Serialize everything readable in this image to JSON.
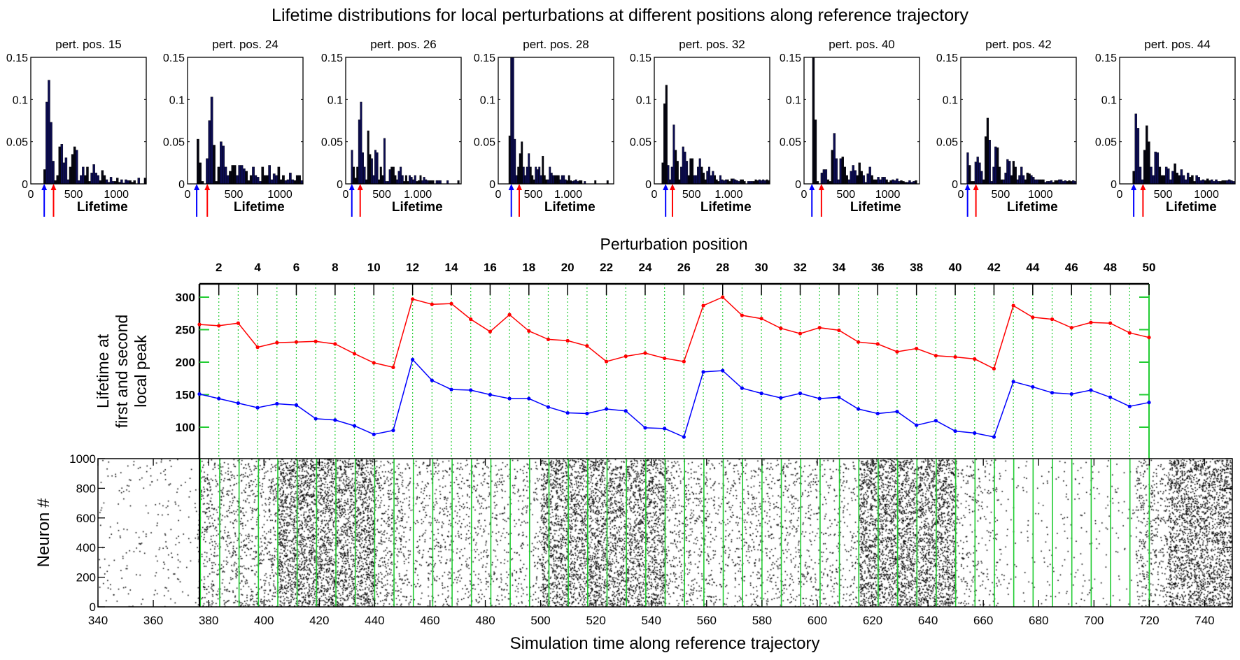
{
  "title": "Lifetime distributions for local perturbations at different positions along reference trajectory",
  "chart_data": [
    {
      "type": "bar",
      "name": "lifetime-histograms",
      "xlabel": "Lifetime",
      "ylim": [
        0,
        0.15
      ],
      "yticks": [
        "0",
        "0.05",
        "0.1",
        "0.15"
      ],
      "bin_width": 25,
      "panels": [
        {
          "title": "pert. pos. 15",
          "xlim": [
            0,
            1350
          ],
          "xticks": [
            {
              "v": 0,
              "l": "0"
            },
            {
              "v": 500,
              "l": "500"
            },
            {
              "v": 1000,
              "l": "1000"
            }
          ],
          "first_peak": 157,
          "second_peak": 266,
          "values": [
            0,
            0,
            0,
            0,
            0,
            0,
            0.017,
            0.097,
            0.123,
            0.073,
            0.027,
            0.004,
            0.01,
            0.044,
            0.047,
            0.025,
            0.031,
            0.005,
            0.02,
            0.035,
            0.044,
            0.04,
            0.004,
            0.01,
            0.02,
            0.01,
            0.02,
            0.003,
            0.013,
            0.023,
            0.013,
            0.01,
            0.004,
            0.016,
            0.01,
            0.005,
            0.002,
            0.008,
            0.003,
            0.003,
            0.007,
            0.002,
            0.005,
            0.001,
            0.005,
            0.004,
            0.004,
            0.002,
            0.004,
            0,
            0.007,
            0,
            0,
            0.007,
            0
          ]
        },
        {
          "title": "pert. pos. 24",
          "xlim": [
            0,
            1250
          ],
          "xticks": [
            {
              "v": 0,
              "l": "0"
            },
            {
              "v": 500,
              "l": "500"
            },
            {
              "v": 1000,
              "l": "1000"
            }
          ],
          "first_peak": 99,
          "second_peak": 214,
          "values": [
            0,
            0,
            0,
            0,
            0.053,
            0.025,
            0.003,
            0,
            0.03,
            0.075,
            0.103,
            0.046,
            0.003,
            0.02,
            0.05,
            0.045,
            0.02,
            0.01,
            0.015,
            0.022,
            0.022,
            0.01,
            0.022,
            0.022,
            0.018,
            0.015,
            0.004,
            0.01,
            0.02,
            0.01,
            0.008,
            0.003,
            0.02,
            0.01,
            0.01,
            0.022,
            0.005,
            0.012,
            0.01,
            0.02,
            0.005,
            0.01,
            0.004,
            0.005,
            0.013,
            0.005,
            0.004,
            0.01,
            0.01,
            0.004
          ]
        },
        {
          "title": "pert. pos. 26",
          "xlim": [
            0,
            1600
          ],
          "xticks": [
            {
              "v": 0,
              "l": "0"
            },
            {
              "v": 500,
              "l": "500"
            },
            {
              "v": 1000,
              "l": "1.000"
            }
          ],
          "first_peak": 85,
          "second_peak": 201,
          "values": [
            0,
            0,
            0,
            0.04,
            0.02,
            0.007,
            0.02,
            0.076,
            0.097,
            0.037,
            0.02,
            0.005,
            0.063,
            0.035,
            0.03,
            0.01,
            0.04,
            0.037,
            0.005,
            0.02,
            0.01,
            0.054,
            0.003,
            0.003,
            0.017,
            0.02,
            0.02,
            0.01,
            0.005,
            0.015,
            0.02,
            0.01,
            0.003,
            0.01,
            0.003,
            0.01,
            0.008,
            0.005,
            0.01,
            0.003,
            0.004,
            0.01,
            0.004,
            0.008,
            0.005,
            0.004,
            0.004,
            0.004,
            0.004,
            0,
            0.004,
            0.004,
            0.004,
            0,
            0,
            0,
            0.004,
            0,
            0,
            0,
            0,
            0,
            0.004
          ]
        },
        {
          "title": "pert. pos. 28",
          "xlim": [
            0,
            1650
          ],
          "xticks": [
            {
              "v": 0,
              "l": "0"
            },
            {
              "v": 500,
              "l": "500"
            },
            {
              "v": 1000,
              "l": "1.000"
            }
          ],
          "first_peak": 187,
          "second_peak": 300,
          "values": [
            0,
            0,
            0,
            0,
            0,
            0,
            0.057,
            0.15,
            0.15,
            0.053,
            0.01,
            0.02,
            0.036,
            0.05,
            0.02,
            0.01,
            0.02,
            0.036,
            0.02,
            0.01,
            0.005,
            0.02,
            0.017,
            0.02,
            0.01,
            0.033,
            0.01,
            0.005,
            0.005,
            0.02,
            0.013,
            0.01,
            0.01,
            0.01,
            0.01,
            0.005,
            0.01,
            0.01,
            0.005,
            0.004,
            0.01,
            0.004,
            0.003,
            0.004,
            0.005,
            0.003,
            0.004,
            0.004,
            0,
            0.003,
            0,
            0,
            0,
            0,
            0,
            0.004,
            0,
            0,
            0,
            0,
            0,
            0,
            0.004
          ]
        },
        {
          "title": "pert. pos. 32",
          "xlim": [
            0,
            1550
          ],
          "xticks": [
            {
              "v": 0,
              "l": "0"
            },
            {
              "v": 500,
              "l": "500"
            },
            {
              "v": 1000,
              "l": "1.000"
            }
          ],
          "first_peak": 152,
          "second_peak": 244,
          "values": [
            0,
            0,
            0,
            0,
            0.025,
            0.095,
            0.117,
            0.022,
            0.005,
            0.02,
            0.07,
            0.04,
            0.027,
            0.005,
            0.02,
            0.044,
            0.038,
            0.027,
            0.01,
            0.03,
            0.03,
            0.01,
            0.01,
            0.02,
            0.03,
            0.02,
            0.013,
            0.005,
            0.015,
            0.02,
            0.01,
            0.015,
            0.01,
            0.005,
            0.003,
            0.01,
            0.005,
            0.004,
            0.005,
            0.005,
            0.003,
            0.006,
            0.006,
            0.005,
            0.004,
            0.003,
            0.005,
            0.005,
            0.003,
            0,
            0.003,
            0.003,
            0.003,
            0.003,
            0.005,
            0.004,
            0.005,
            0.004,
            0.005,
            0.004,
            0.005,
            0.004
          ]
        },
        {
          "title": "pert. pos. 40",
          "xlim": [
            0,
            1380
          ],
          "xticks": [
            {
              "v": 0,
              "l": "0"
            },
            {
              "v": 500,
              "l": "500"
            },
            {
              "v": 1000,
              "l": "1000"
            }
          ],
          "first_peak": 94,
          "second_peak": 208,
          "values": [
            0,
            0,
            0,
            0,
            0.15,
            0.076,
            0.003,
            0,
            0.013,
            0.017,
            0.017,
            0.005,
            0.003,
            0.04,
            0.06,
            0.03,
            0.005,
            0.03,
            0.032,
            0.02,
            0.01,
            0.005,
            0.015,
            0.022,
            0.016,
            0.01,
            0.025,
            0.015,
            0.01,
            0.002,
            0.012,
            0.02,
            0.01,
            0.005,
            0.005,
            0.008,
            0.005,
            0.008,
            0.008,
            0.005,
            0.002,
            0.004,
            0.005,
            0.004,
            0.006,
            0.003,
            0.004,
            0.003,
            0.002,
            0.002,
            0.004,
            0.002,
            0.003,
            0.004
          ]
        },
        {
          "title": "pert. pos. 42",
          "xlim": [
            0,
            1450
          ],
          "xticks": [
            {
              "v": 0,
              "l": "0"
            },
            {
              "v": 500,
              "l": "500"
            },
            {
              "v": 1000,
              "l": "1000"
            }
          ],
          "first_peak": 85,
          "second_peak": 190,
          "values": [
            0,
            0,
            0,
            0.037,
            0.022,
            0.003,
            0.003,
            0.026,
            0.032,
            0.025,
            0.015,
            0.005,
            0.056,
            0.078,
            0.052,
            0.003,
            0.02,
            0.044,
            0.043,
            0.02,
            0.005,
            0.005,
            0.013,
            0.029,
            0.027,
            0.01,
            0.027,
            0.02,
            0.005,
            0.01,
            0.02,
            0.01,
            0.005,
            0.013,
            0.012,
            0.01,
            0.008,
            0.005,
            0.005,
            0.005,
            0.005,
            0.005,
            0.002,
            0.003,
            0.003,
            0.004,
            0.002,
            0.004,
            0.004,
            0.005,
            0.005,
            0.003,
            0.004,
            0.003,
            0.004,
            0.003,
            0.004,
            0.003
          ]
        },
        {
          "title": "pert. pos. 44",
          "xlim": [
            0,
            1330
          ],
          "xticks": [
            {
              "v": 0,
              "l": "0"
            },
            {
              "v": 500,
              "l": "500"
            },
            {
              "v": 1000,
              "l": "1000"
            }
          ],
          "first_peak": 162,
          "second_peak": 269,
          "values": [
            0,
            0,
            0,
            0,
            0,
            0,
            0.015,
            0.083,
            0.066,
            0.02,
            0.005,
            0.04,
            0.069,
            0.05,
            0.02,
            0.01,
            0.038,
            0.037,
            0.02,
            0.01,
            0.01,
            0.02,
            0.018,
            0.005,
            0.015,
            0.024,
            0.013,
            0.01,
            0.017,
            0.01,
            0.005,
            0.013,
            0.008,
            0.01,
            0.003,
            0.01,
            0.008,
            0.004,
            0.005,
            0.004,
            0.006,
            0.004,
            0.005,
            0.003,
            0.005,
            0.003,
            0.003,
            0.004,
            0.004,
            0.004,
            0.005,
            0.004,
            0.003
          ]
        }
      ]
    },
    {
      "type": "line",
      "name": "peak-lifetimes",
      "xlabel": "Perturbation position",
      "ylabel": [
        "Lifetime at",
        "first and second",
        "local peak"
      ],
      "xlim": [
        1,
        50
      ],
      "ylim": [
        75,
        320
      ],
      "xticks": [
        2,
        4,
        6,
        8,
        10,
        12,
        14,
        16,
        18,
        20,
        22,
        24,
        26,
        28,
        30,
        32,
        34,
        36,
        38,
        40,
        42,
        44,
        46,
        48,
        50
      ],
      "yticks": [
        100,
        150,
        200,
        250,
        300
      ],
      "series": [
        {
          "name": "second local peak",
          "color": "#ff0000",
          "values": [
            258,
            256,
            260,
            223,
            230,
            231,
            232,
            228,
            213,
            199,
            192,
            297,
            289,
            290,
            266,
            247,
            273,
            248,
            235,
            233,
            225,
            201,
            209,
            214,
            206,
            201,
            287,
            300,
            272,
            267,
            252,
            244,
            253,
            249,
            231,
            228,
            216,
            221,
            210,
            208,
            205,
            190,
            287,
            269,
            266,
            253,
            261,
            260,
            245,
            238
          ]
        },
        {
          "name": "first local peak",
          "color": "#0000ff",
          "values": [
            151,
            144,
            137,
            130,
            136,
            134,
            113,
            111,
            102,
            89,
            95,
            204,
            172,
            158,
            157,
            150,
            144,
            144,
            131,
            122,
            121,
            128,
            125,
            99,
            98,
            85,
            185,
            187,
            160,
            152,
            145,
            152,
            144,
            146,
            128,
            121,
            124,
            103,
            110,
            94,
            91,
            85,
            170,
            162,
            153,
            151,
            157,
            146,
            132,
            138
          ]
        }
      ],
      "grid_color": "#22cc33"
    },
    {
      "type": "scatter",
      "name": "spike-raster",
      "xlabel": "Simulation time along reference trajectory",
      "ylabel": "Neuron #",
      "xlim": [
        340,
        750
      ],
      "ylim": [
        0,
        1000
      ],
      "xticks": [
        340,
        360,
        380,
        400,
        420,
        440,
        460,
        480,
        500,
        520,
        540,
        560,
        580,
        600,
        620,
        640,
        660,
        680,
        700,
        720,
        740
      ],
      "yticks": [
        0,
        200,
        400,
        600,
        800,
        1000
      ],
      "perturbation_times_start": 377,
      "perturbation_times_step": 7,
      "perturbation_count": 50,
      "spike_density": [
        [
          340,
          376,
          0.06
        ],
        [
          376,
          405,
          0.35
        ],
        [
          405,
          440,
          1.0
        ],
        [
          440,
          450,
          0.4
        ],
        [
          450,
          500,
          0.22
        ],
        [
          500,
          545,
          0.9
        ],
        [
          545,
          560,
          0.3
        ],
        [
          560,
          615,
          0.22
        ],
        [
          615,
          650,
          1.0
        ],
        [
          650,
          665,
          0.18
        ],
        [
          665,
          715,
          0.05
        ],
        [
          715,
          727,
          0.35
        ],
        [
          727,
          750,
          1.0
        ]
      ]
    }
  ]
}
